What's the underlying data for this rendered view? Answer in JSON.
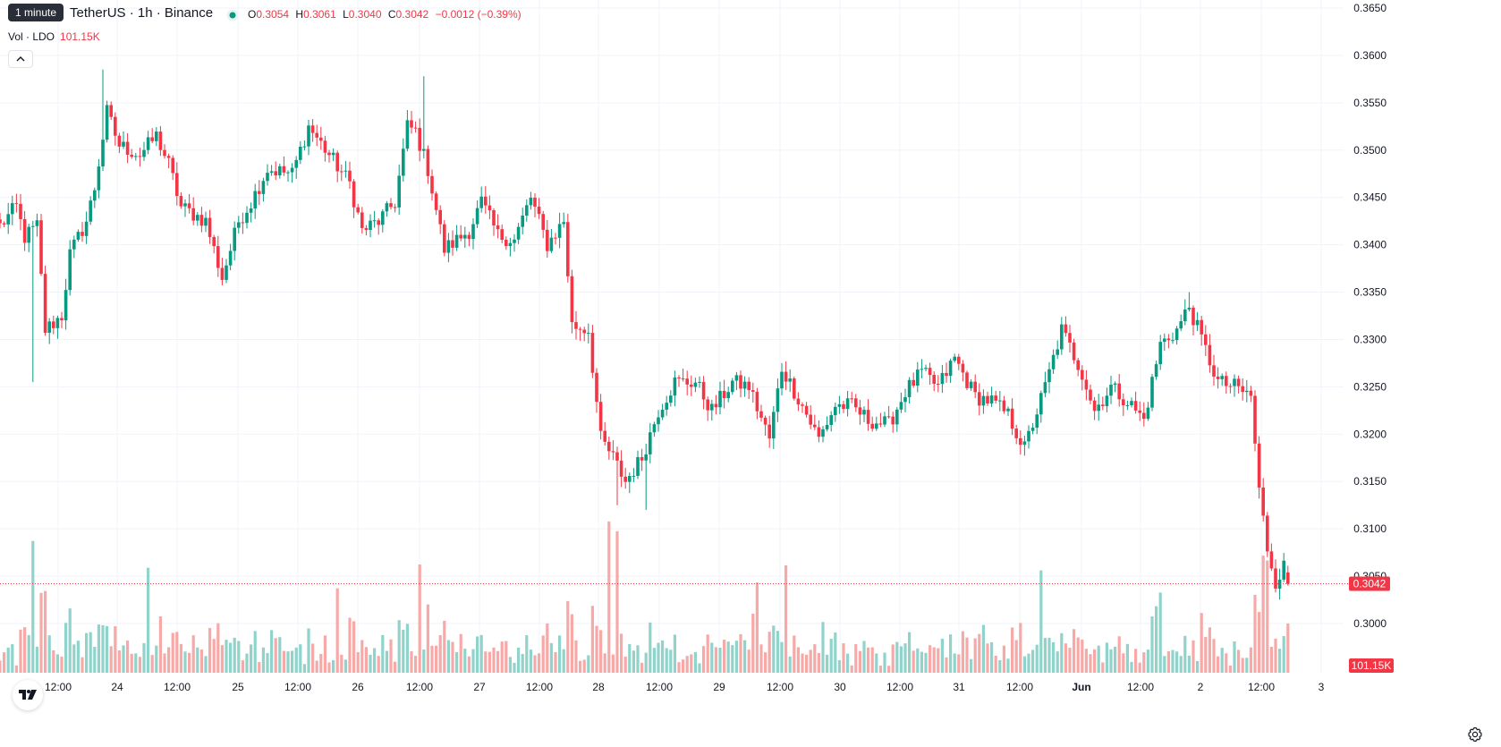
{
  "header": {
    "tooltip": "1 minute",
    "symbol_title": "TetherUS · 1h · Binance",
    "ohlc": {
      "o_label": "O",
      "o_value": "0.3054",
      "h_label": "H",
      "h_value": "0.3061",
      "l_label": "L",
      "l_value": "0.3040",
      "c_label": "C",
      "c_value": "0.3042",
      "change": "−0.0012 (−0.39%)"
    },
    "volume_label": "Vol · LDO",
    "volume_value": "101.15K",
    "status_color": "#089981"
  },
  "colors": {
    "up": "#089981",
    "down": "#f23645",
    "up_volume": "#8fd3cb",
    "down_volume": "#f7a9a7",
    "grid": "#f0f3fa",
    "axis_text": "#131722",
    "last_price_line": "#f23645"
  },
  "price_axis": {
    "ticks": [
      "0.3650",
      "0.3600",
      "0.3550",
      "0.3500",
      "0.3450",
      "0.3400",
      "0.3350",
      "0.3300",
      "0.3250",
      "0.3200",
      "0.3150",
      "0.3100",
      "0.3050",
      "0.3000"
    ],
    "last_price_label": "0.3042",
    "volume_label": "101.15K"
  },
  "time_axis": {
    "ticks": [
      "12:00",
      "24",
      "12:00",
      "25",
      "12:00",
      "26",
      "12:00",
      "27",
      "12:00",
      "28",
      "12:00",
      "29",
      "12:00",
      "30",
      "12:00",
      "31",
      "12:00",
      "Jun",
      "12:00",
      "2",
      "12:00",
      "3"
    ],
    "bold_ticks": [
      "Jun"
    ]
  },
  "icons": {
    "collapse": "chevron-up-icon",
    "logo": "tradingview-logo-icon",
    "settings": "gear-icon"
  },
  "chart_data": {
    "type": "candlestick",
    "interval": "1h",
    "y_range": [
      0.2945,
      0.3655
    ],
    "last_price": 0.3042,
    "time_labels": [
      "12:00",
      "24",
      "12:00",
      "25",
      "12:00",
      "26",
      "12:00",
      "27",
      "12:00",
      "28",
      "12:00",
      "29",
      "12:00",
      "30",
      "12:00",
      "31",
      "12:00",
      "Jun",
      "12:00",
      "2",
      "12:00",
      "3"
    ],
    "anchors": [
      [
        0,
        0.342
      ],
      [
        4,
        0.344
      ],
      [
        6,
        0.3408
      ],
      [
        9,
        0.342
      ],
      [
        11,
        0.331
      ],
      [
        15,
        0.3325
      ],
      [
        17,
        0.339
      ],
      [
        21,
        0.3425
      ],
      [
        23,
        0.346
      ],
      [
        26,
        0.354
      ],
      [
        29,
        0.3505
      ],
      [
        34,
        0.3495
      ],
      [
        38,
        0.3515
      ],
      [
        41,
        0.3485
      ],
      [
        44,
        0.344
      ],
      [
        50,
        0.3425
      ],
      [
        54,
        0.3365
      ],
      [
        58,
        0.3425
      ],
      [
        61,
        0.3445
      ],
      [
        65,
        0.348
      ],
      [
        71,
        0.3475
      ],
      [
        75,
        0.3525
      ],
      [
        80,
        0.3495
      ],
      [
        85,
        0.3465
      ],
      [
        88,
        0.3415
      ],
      [
        92,
        0.3425
      ],
      [
        96,
        0.3445
      ],
      [
        99,
        0.3525
      ],
      [
        101,
        0.352
      ],
      [
        104,
        0.348
      ],
      [
        108,
        0.3395
      ],
      [
        114,
        0.3415
      ],
      [
        117,
        0.3445
      ],
      [
        121,
        0.341
      ],
      [
        125,
        0.3405
      ],
      [
        129,
        0.345
      ],
      [
        133,
        0.34
      ],
      [
        137,
        0.3425
      ],
      [
        139,
        0.3315
      ],
      [
        143,
        0.331
      ],
      [
        146,
        0.3195
      ],
      [
        149,
        0.3175
      ],
      [
        152,
        0.315
      ],
      [
        156,
        0.3175
      ],
      [
        160,
        0.3225
      ],
      [
        164,
        0.3255
      ],
      [
        169,
        0.3255
      ],
      [
        173,
        0.3225
      ],
      [
        178,
        0.3255
      ],
      [
        182,
        0.325
      ],
      [
        187,
        0.3195
      ],
      [
        190,
        0.327
      ],
      [
        195,
        0.323
      ],
      [
        199,
        0.3195
      ],
      [
        203,
        0.323
      ],
      [
        207,
        0.323
      ],
      [
        211,
        0.3215
      ],
      [
        216,
        0.321
      ],
      [
        220,
        0.3245
      ],
      [
        224,
        0.3265
      ],
      [
        228,
        0.325
      ],
      [
        232,
        0.328
      ],
      [
        237,
        0.324
      ],
      [
        241,
        0.3235
      ],
      [
        245,
        0.322
      ],
      [
        249,
        0.3185
      ],
      [
        254,
        0.325
      ],
      [
        258,
        0.331
      ],
      [
        263,
        0.3265
      ],
      [
        266,
        0.3225
      ],
      [
        270,
        0.325
      ],
      [
        274,
        0.3235
      ],
      [
        278,
        0.3215
      ],
      [
        282,
        0.3295
      ],
      [
        286,
        0.331
      ],
      [
        289,
        0.3335
      ],
      [
        292,
        0.33
      ],
      [
        296,
        0.3255
      ],
      [
        300,
        0.325
      ],
      [
        304,
        0.324
      ],
      [
        306,
        0.314
      ],
      [
        308,
        0.308
      ],
      [
        310,
        0.3045
      ],
      [
        312,
        0.306
      ],
      [
        313,
        0.3042
      ]
    ],
    "extreme_wicks": {
      "high": [
        0.3585,
        0.3578,
        0.335
      ],
      "low": [
        0.3255,
        0.3125,
        0.312
      ]
    },
    "volume_range": [
      0,
      330000
    ],
    "last_volume": 101150
  }
}
